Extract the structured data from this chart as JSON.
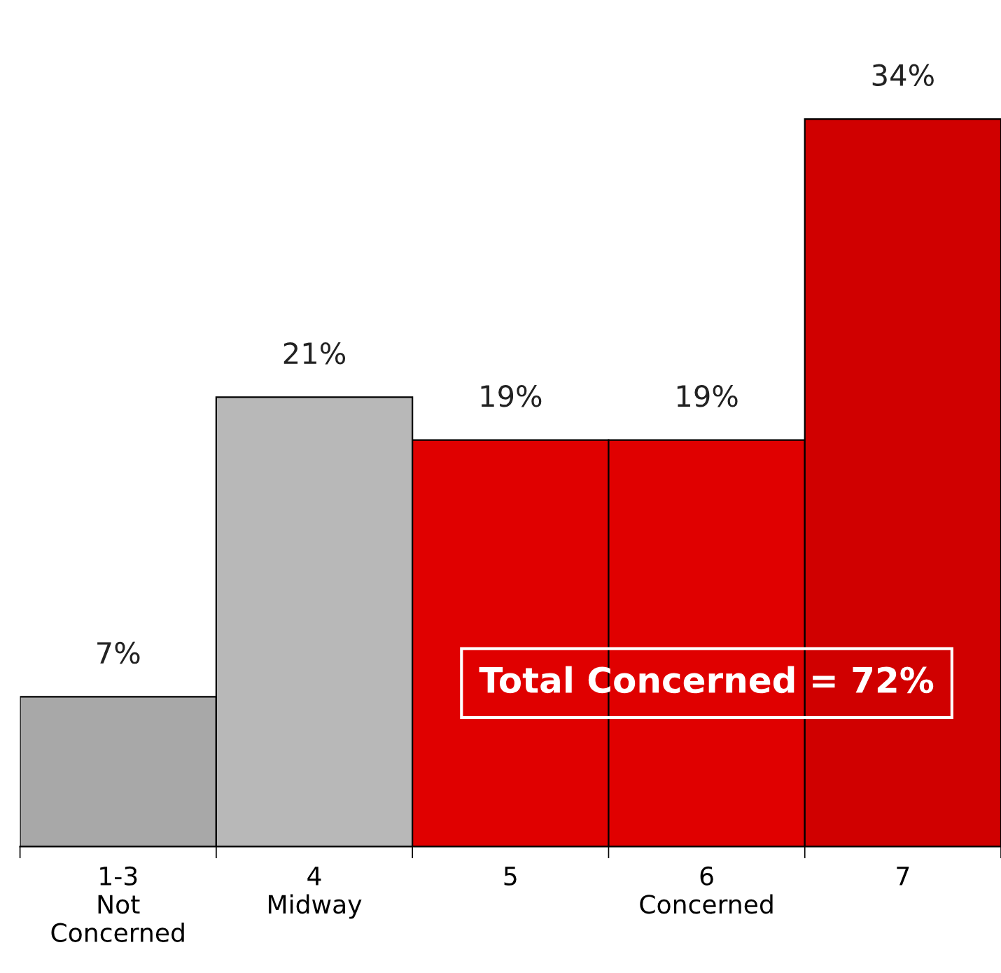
{
  "chart_data": {
    "type": "bar",
    "categories": [
      "1-3\nNot\nConcerned",
      "4\nMidway",
      "5",
      "6\nConcerned",
      "7"
    ],
    "values": [
      7,
      21,
      19,
      19,
      34
    ],
    "colors": [
      "#a8a8a8",
      "#b8b8b8",
      "#e00000",
      "#e00000",
      "#d00000"
    ],
    "data_labels": true,
    "value_labels": [
      "7%",
      "21%",
      "19%",
      "19%",
      "34%"
    ],
    "annotations": [
      "Total Concerned = 72%"
    ],
    "grid": false,
    "legend": false
  }
}
